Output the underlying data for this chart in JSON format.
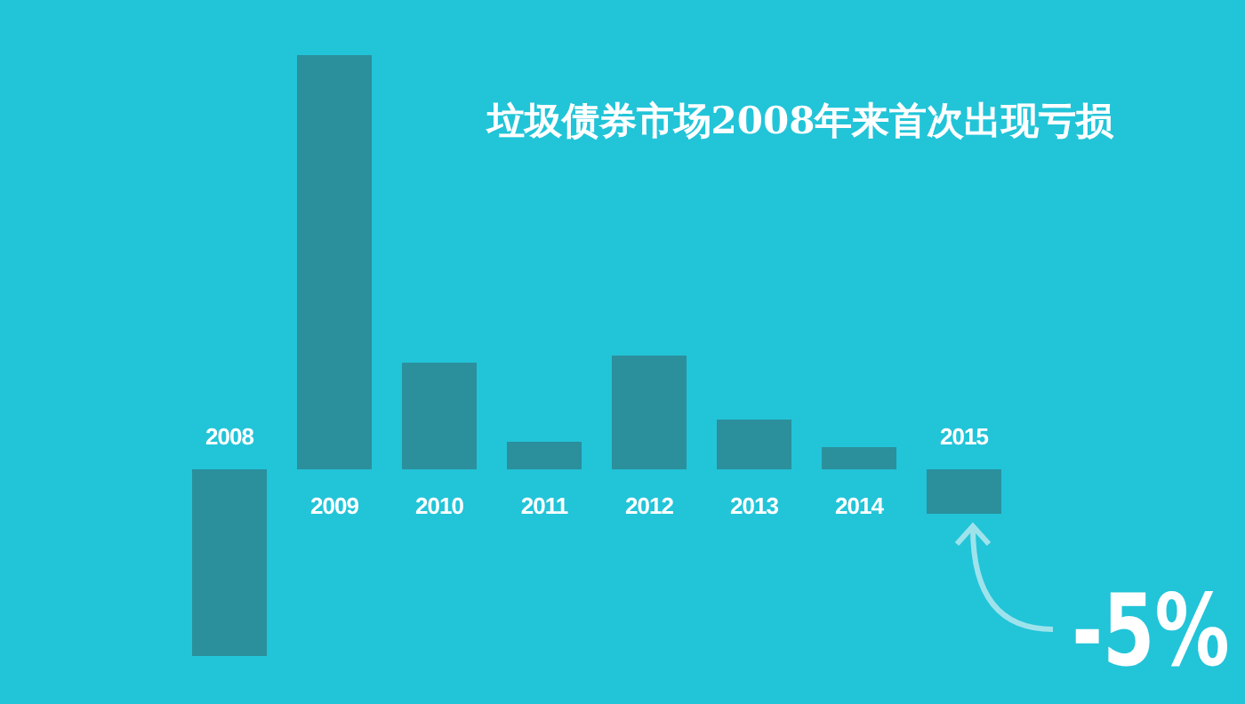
{
  "chart_data": {
    "type": "bar",
    "title": "垃圾债券市场2008年来首次出现亏损",
    "categories": [
      "2008",
      "2009",
      "2010",
      "2011",
      "2012",
      "2013",
      "2014",
      "2015"
    ],
    "values": [
      -21,
      46.6,
      12,
      3.1,
      12.8,
      5.6,
      2.5,
      -5
    ],
    "color": "#2b8f9c",
    "value_labels": [
      null,
      null,
      null,
      null,
      null,
      null,
      null,
      "-5%"
    ]
  }
}
